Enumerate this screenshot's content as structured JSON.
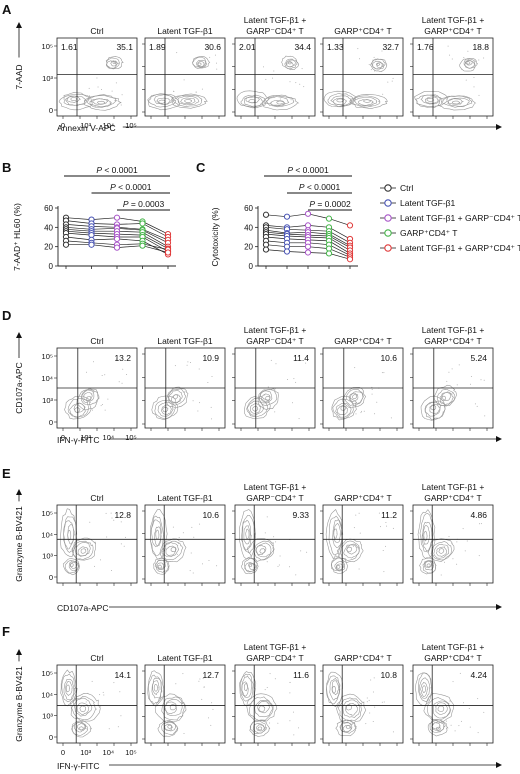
{
  "flow_panels": [
    {
      "letter": "A",
      "titles": [
        [
          "Ctrl"
        ],
        [
          "Latent TGF-β1"
        ],
        [
          "Latent TGF-β1 +",
          "GARP⁻CD4⁺ T"
        ],
        [
          "GARP⁺CD4⁺ T"
        ],
        [
          "Latent TGF-β1 +",
          "GARP⁺CD4⁺ T"
        ]
      ],
      "ylabel": "7-AAD",
      "xlabel": "Annexin V-APC",
      "yticks": [
        "10⁵",
        "10³",
        "0"
      ],
      "xticks": [
        "0",
        "10³",
        "10⁴",
        "10⁵"
      ],
      "values": [
        [
          "1.61",
          "35.1"
        ],
        [
          "1.89",
          "30.6"
        ],
        [
          "2.01",
          "34.4"
        ],
        [
          "1.33",
          "32.7"
        ],
        [
          "1.76",
          "18.8"
        ]
      ]
    },
    {
      "letter": "D",
      "titles": [
        [
          "Ctrl"
        ],
        [
          "Latent TGF-β1"
        ],
        [
          "Latent TGF-β1 +",
          "GARP⁻CD4⁺ T"
        ],
        [
          "GARP⁺CD4⁺ T"
        ],
        [
          "Latent TGF-β1 +",
          "GARP⁺CD4⁺ T"
        ]
      ],
      "ylabel": "CD107a-APC",
      "xlabel": "IFN-γ-FITC",
      "yticks": [
        "10⁵",
        "10⁴",
        "10³",
        "0"
      ],
      "xticks": [
        "0",
        "10³",
        "10⁴",
        "10⁵"
      ],
      "values": [
        [
          "13.2"
        ],
        [
          "10.9"
        ],
        [
          "11.4"
        ],
        [
          "10.6"
        ],
        [
          "5.24"
        ]
      ]
    },
    {
      "letter": "E",
      "titles": [
        [
          "Ctrl"
        ],
        [
          "Latent TGF-β1"
        ],
        [
          "Latent TGF-β1 +",
          "GARP⁻CD4⁺ T"
        ],
        [
          "GARP⁺CD4⁺ T"
        ],
        [
          "Latent TGF-β1 +",
          "GARP⁺CD4⁺ T"
        ]
      ],
      "ylabel": "Granzyme B-BV421",
      "xlabel": "CD107a-APC",
      "yticks": [
        "10⁵",
        "10⁴",
        "10³",
        "0"
      ],
      "xticks": [],
      "values": [
        [
          "12.8"
        ],
        [
          "10.6"
        ],
        [
          "9.33"
        ],
        [
          "11.2"
        ],
        [
          "4.86"
        ]
      ]
    },
    {
      "letter": "F",
      "titles": [
        [
          "Ctrl"
        ],
        [
          "Latent TGF-β1"
        ],
        [
          "Latent TGF-β1 +",
          "GARP⁻CD4⁺ T"
        ],
        [
          "GARP⁺CD4⁺ T"
        ],
        [
          "Latent TGF-β1 +",
          "GARP⁺CD4⁺ T"
        ]
      ],
      "ylabel": "Granzyme B-BV421",
      "xlabel": "IFN-γ-FITC",
      "yticks": [
        "10⁵",
        "10⁴",
        "10³",
        "0"
      ],
      "xticks": [
        "0",
        "10³",
        "10⁴",
        "10⁵"
      ],
      "values": [
        [
          "14.1"
        ],
        [
          "12.7"
        ],
        [
          "11.6"
        ],
        [
          "10.8"
        ],
        [
          "4.24"
        ]
      ]
    }
  ],
  "chart_data": [
    {
      "letter": "B",
      "type": "line",
      "ylabel": "7-AAD⁺ HL60 (%)",
      "ylim": [
        0,
        60
      ],
      "yticks": [
        "0",
        "20",
        "40",
        "60"
      ],
      "groups": 5,
      "colors": [
        "#333333",
        "#4a55b5",
        "#a855c8",
        "#46b54a",
        "#e03a3a"
      ],
      "subjects": [
        [
          50,
          48,
          50,
          46,
          33
        ],
        [
          47,
          44,
          43,
          44,
          30
        ],
        [
          43,
          41,
          40,
          38,
          27
        ],
        [
          40,
          38,
          39,
          37,
          24
        ],
        [
          38,
          36,
          36,
          35,
          20
        ],
        [
          36,
          34,
          33,
          32,
          18
        ],
        [
          34,
          32,
          30,
          30,
          15
        ],
        [
          30,
          27,
          28,
          26,
          12
        ],
        [
          26,
          24,
          22,
          23,
          17
        ],
        [
          22,
          22,
          19,
          21,
          14
        ]
      ],
      "brackets": [
        {
          "from": 1,
          "to": 5,
          "label": "P < 0.0001"
        },
        {
          "from": 2,
          "to": 5,
          "label": "P < 0.0001"
        },
        {
          "from": 3,
          "to": 5,
          "label": "P = 0.0003"
        }
      ]
    },
    {
      "letter": "C",
      "type": "line",
      "ylabel": "Cytotoxicity (%)",
      "ylim": [
        0,
        60
      ],
      "yticks": [
        "0",
        "20",
        "40",
        "60"
      ],
      "groups": 5,
      "colors": [
        "#333333",
        "#4a55b5",
        "#a855c8",
        "#46b54a",
        "#e03a3a"
      ],
      "subjects": [
        [
          53,
          51,
          54,
          49,
          42
        ],
        [
          42,
          40,
          42,
          40,
          28
        ],
        [
          40,
          38,
          37,
          36,
          24
        ],
        [
          37,
          34,
          35,
          33,
          21
        ],
        [
          35,
          33,
          32,
          31,
          19
        ],
        [
          33,
          31,
          30,
          29,
          16
        ],
        [
          30,
          28,
          27,
          26,
          13
        ],
        [
          26,
          24,
          24,
          22,
          11
        ],
        [
          22,
          20,
          20,
          18,
          9
        ],
        [
          17,
          15,
          14,
          13,
          7
        ]
      ],
      "brackets": [
        {
          "from": 1,
          "to": 5,
          "label": "P < 0.0001"
        },
        {
          "from": 2,
          "to": 5,
          "label": "P < 0.0001"
        },
        {
          "from": 3,
          "to": 5,
          "label": "P = 0.0002"
        }
      ]
    }
  ],
  "legend": {
    "placement": "right",
    "items": [
      {
        "label": "Ctrl",
        "color": "#333333"
      },
      {
        "label": "Latent TGF-β1",
        "color": "#4a55b5"
      },
      {
        "label": "Latent TGF-β1 + GARP⁻CD4⁺ T",
        "color": "#a855c8"
      },
      {
        "label": "GARP⁺CD4⁺ T",
        "color": "#46b54a"
      },
      {
        "label": "Latent TGF-β1 + GARP⁺CD4⁺ T",
        "color": "#e03a3a"
      }
    ]
  }
}
